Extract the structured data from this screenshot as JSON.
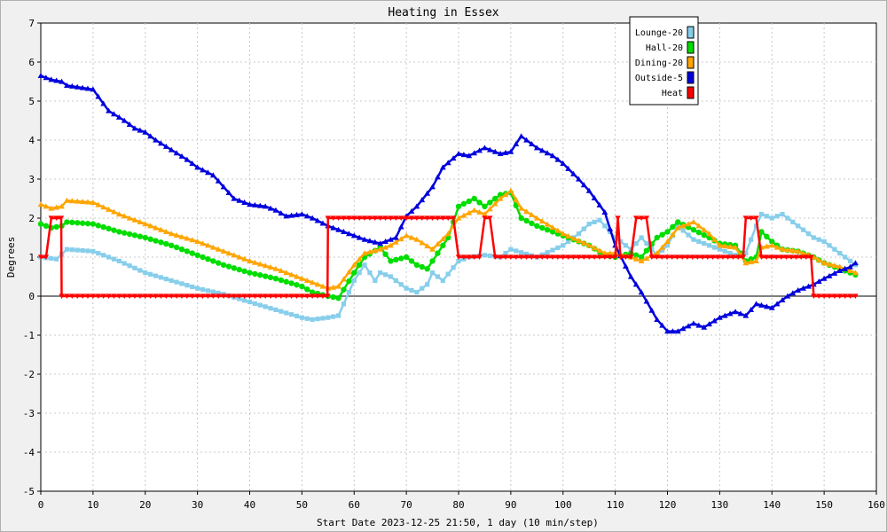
{
  "chart_data": {
    "type": "line",
    "title": "Heating in Essex",
    "xlabel": "Start Date 2023-12-25 21:50, 1 day (10 min/step)",
    "ylabel": "Degrees",
    "xlim": [
      0,
      160
    ],
    "ylim": [
      -5,
      7
    ],
    "xticks": [
      0,
      10,
      20,
      30,
      40,
      50,
      60,
      70,
      80,
      90,
      100,
      110,
      120,
      130,
      140,
      150,
      160
    ],
    "yticks": [
      -5,
      -4,
      -3,
      -2,
      -1,
      0,
      1,
      2,
      3,
      4,
      5,
      6,
      7
    ],
    "grid": true,
    "legend_position": "top-right",
    "series": [
      {
        "name": "Lounge-20",
        "color": "#87ceeb",
        "marker": "square",
        "x": [
          0,
          3,
          5,
          10,
          15,
          20,
          25,
          30,
          35,
          40,
          45,
          50,
          52,
          55,
          57,
          60,
          62,
          64,
          65,
          67,
          70,
          72,
          74,
          75,
          77,
          80,
          82,
          85,
          88,
          90,
          95,
          100,
          103,
          105,
          107,
          110,
          113,
          115,
          118,
          120,
          122,
          125,
          128,
          130,
          133,
          135,
          137,
          138,
          140,
          142,
          145,
          148,
          150,
          152,
          154,
          156
        ],
        "values": [
          1.0,
          0.95,
          1.2,
          1.15,
          0.9,
          0.6,
          0.4,
          0.2,
          0.05,
          -0.15,
          -0.35,
          -0.55,
          -0.6,
          -0.55,
          -0.5,
          0.4,
          0.8,
          0.4,
          0.6,
          0.5,
          0.2,
          0.1,
          0.3,
          0.6,
          0.4,
          0.9,
          1.0,
          1.05,
          1.0,
          1.2,
          1.0,
          1.3,
          1.6,
          1.85,
          1.95,
          1.5,
          1.2,
          1.5,
          1.05,
          1.3,
          1.8,
          1.45,
          1.3,
          1.2,
          1.05,
          1.1,
          1.8,
          2.1,
          2.0,
          2.1,
          1.8,
          1.5,
          1.4,
          1.2,
          1.0,
          0.8
        ]
      },
      {
        "name": "Hall-20",
        "color": "#00dd00",
        "marker": "circle",
        "x": [
          0,
          2,
          4,
          5,
          10,
          15,
          20,
          25,
          30,
          35,
          40,
          45,
          50,
          52,
          55,
          57,
          60,
          62,
          65,
          67,
          70,
          72,
          74,
          75,
          78,
          80,
          83,
          85,
          88,
          90,
          92,
          95,
          100,
          105,
          108,
          110,
          113,
          115,
          118,
          120,
          122,
          125,
          128,
          130,
          133,
          135,
          137,
          138,
          140,
          142,
          145,
          148,
          150,
          153,
          155,
          156
        ],
        "values": [
          1.85,
          1.75,
          1.8,
          1.9,
          1.85,
          1.65,
          1.5,
          1.3,
          1.05,
          0.8,
          0.6,
          0.45,
          0.25,
          0.1,
          0.0,
          -0.05,
          0.6,
          1.0,
          1.25,
          0.9,
          1.0,
          0.8,
          0.7,
          0.9,
          1.5,
          2.3,
          2.5,
          2.3,
          2.6,
          2.65,
          2.0,
          1.8,
          1.55,
          1.3,
          1.05,
          1.0,
          1.1,
          1.0,
          1.5,
          1.65,
          1.9,
          1.7,
          1.5,
          1.35,
          1.3,
          0.9,
          1.0,
          1.65,
          1.4,
          1.2,
          1.15,
          1.0,
          0.85,
          0.7,
          0.6,
          0.55
        ]
      },
      {
        "name": "Dining-20",
        "color": "#ffa500",
        "marker": "triangle",
        "x": [
          0,
          2,
          4,
          5,
          10,
          15,
          20,
          25,
          30,
          35,
          40,
          45,
          50,
          53,
          55,
          57,
          60,
          62,
          65,
          67,
          70,
          72,
          75,
          78,
          80,
          83,
          85,
          88,
          90,
          92,
          95,
          100,
          105,
          108,
          110,
          113,
          115,
          118,
          120,
          122,
          125,
          128,
          130,
          133,
          135,
          137,
          138,
          140,
          142,
          145,
          148,
          150,
          153,
          155,
          156
        ],
        "values": [
          2.35,
          2.25,
          2.3,
          2.45,
          2.4,
          2.1,
          1.85,
          1.6,
          1.4,
          1.15,
          0.9,
          0.7,
          0.45,
          0.3,
          0.2,
          0.25,
          0.8,
          1.1,
          1.2,
          1.3,
          1.55,
          1.45,
          1.2,
          1.6,
          2.0,
          2.2,
          2.1,
          2.5,
          2.7,
          2.25,
          2.0,
          1.6,
          1.3,
          1.1,
          1.1,
          1.0,
          0.9,
          1.1,
          1.4,
          1.75,
          1.9,
          1.6,
          1.3,
          1.25,
          0.85,
          0.9,
          1.25,
          1.3,
          1.2,
          1.15,
          1.0,
          0.85,
          0.75,
          0.65,
          0.6
        ]
      },
      {
        "name": "Outside-5",
        "color": "#0000dd",
        "marker": "triangle",
        "x": [
          0,
          2,
          4,
          5,
          10,
          13,
          16,
          18,
          20,
          22,
          25,
          28,
          30,
          33,
          35,
          37,
          40,
          43,
          45,
          47,
          50,
          52,
          55,
          57,
          60,
          62,
          65,
          68,
          70,
          72,
          75,
          77,
          80,
          82,
          85,
          88,
          90,
          92,
          95,
          98,
          100,
          103,
          105,
          108,
          110,
          113,
          115,
          118,
          120,
          122,
          125,
          127,
          130,
          133,
          135,
          137,
          140,
          143,
          145,
          148,
          150,
          153,
          155,
          156
        ],
        "values": [
          5.65,
          5.55,
          5.5,
          5.4,
          5.3,
          4.75,
          4.5,
          4.3,
          4.2,
          4.0,
          3.75,
          3.5,
          3.3,
          3.1,
          2.8,
          2.5,
          2.35,
          2.3,
          2.2,
          2.05,
          2.1,
          2.0,
          1.8,
          1.7,
          1.55,
          1.45,
          1.35,
          1.5,
          2.05,
          2.3,
          2.8,
          3.3,
          3.65,
          3.6,
          3.8,
          3.65,
          3.7,
          4.1,
          3.8,
          3.6,
          3.4,
          3.0,
          2.7,
          2.15,
          1.3,
          0.5,
          0.1,
          -0.6,
          -0.9,
          -0.9,
          -0.7,
          -0.8,
          -0.55,
          -0.4,
          -0.5,
          -0.2,
          -0.3,
          0.0,
          0.15,
          0.3,
          0.45,
          0.65,
          0.75,
          0.85
        ]
      },
      {
        "name": "Heat",
        "color": "#ff0000",
        "marker": "triangle-down",
        "x": [
          0,
          1,
          2,
          3,
          3.9,
          4,
          54,
          54.9,
          55,
          79,
          80,
          84,
          85,
          86,
          87,
          110,
          110.5,
          111,
          113,
          114,
          116,
          117,
          134.5,
          135,
          137,
          138,
          147.5,
          148,
          156
        ],
        "values": [
          1,
          1,
          2,
          2,
          2,
          0,
          0,
          0,
          2,
          2,
          1,
          1,
          2,
          2,
          1,
          1,
          2,
          1,
          1,
          2,
          2,
          1,
          1,
          2,
          2,
          1,
          1,
          0,
          0
        ]
      }
    ]
  }
}
